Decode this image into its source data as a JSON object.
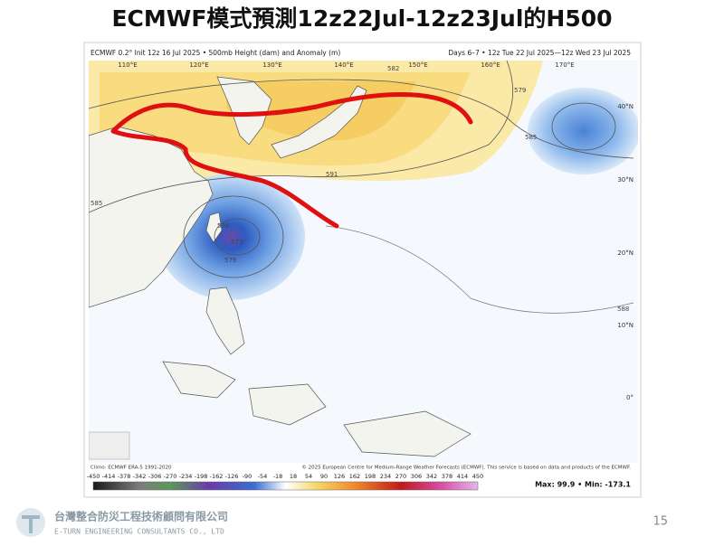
{
  "title": "ECMWF模式預測12z22Jul-12z23Jul的H500",
  "map": {
    "header_left": "ECMWF 0.2° Init 12z 16 Jul 2025 • 500mb Height (dam) and Anomaly (m)",
    "header_right": "Days 6–7 • 12z Tue 22 Jul 2025—12z Wed 23 Jul 2025",
    "longitudes": [
      "110°E",
      "120°E",
      "130°E",
      "140°E",
      "150°E",
      "160°E",
      "170°E"
    ],
    "latitudes": [
      "40°N",
      "30°N",
      "20°N",
      "10°N",
      "0°"
    ],
    "contours": [
      "582",
      "579",
      "585",
      "591",
      "585",
      "576",
      "573",
      "579",
      "588"
    ],
    "footer_left": "Climo: ECMWF ERA-5 1991-2020",
    "footer_right": "© 2025 European Centre for Medium-Range Weather Forecasts (ECMWF). This service is based on data and products of the ECMWF.",
    "colorbar_ticks": [
      -450,
      -414,
      -378,
      -342,
      -306,
      -270,
      -234,
      -198,
      -162,
      -126,
      -90,
      -54,
      -18,
      18,
      54,
      90,
      126,
      162,
      198,
      234,
      270,
      306,
      342,
      378,
      414,
      450
    ],
    "stats": "Max: 99.9 • Min: -173.1"
  },
  "footer": {
    "company_zh": "台灣整合防災工程技術顧問有限公司",
    "company_en": "E-TURN ENGINEERING CONSULTANTS CO., LTD",
    "page": 15
  }
}
